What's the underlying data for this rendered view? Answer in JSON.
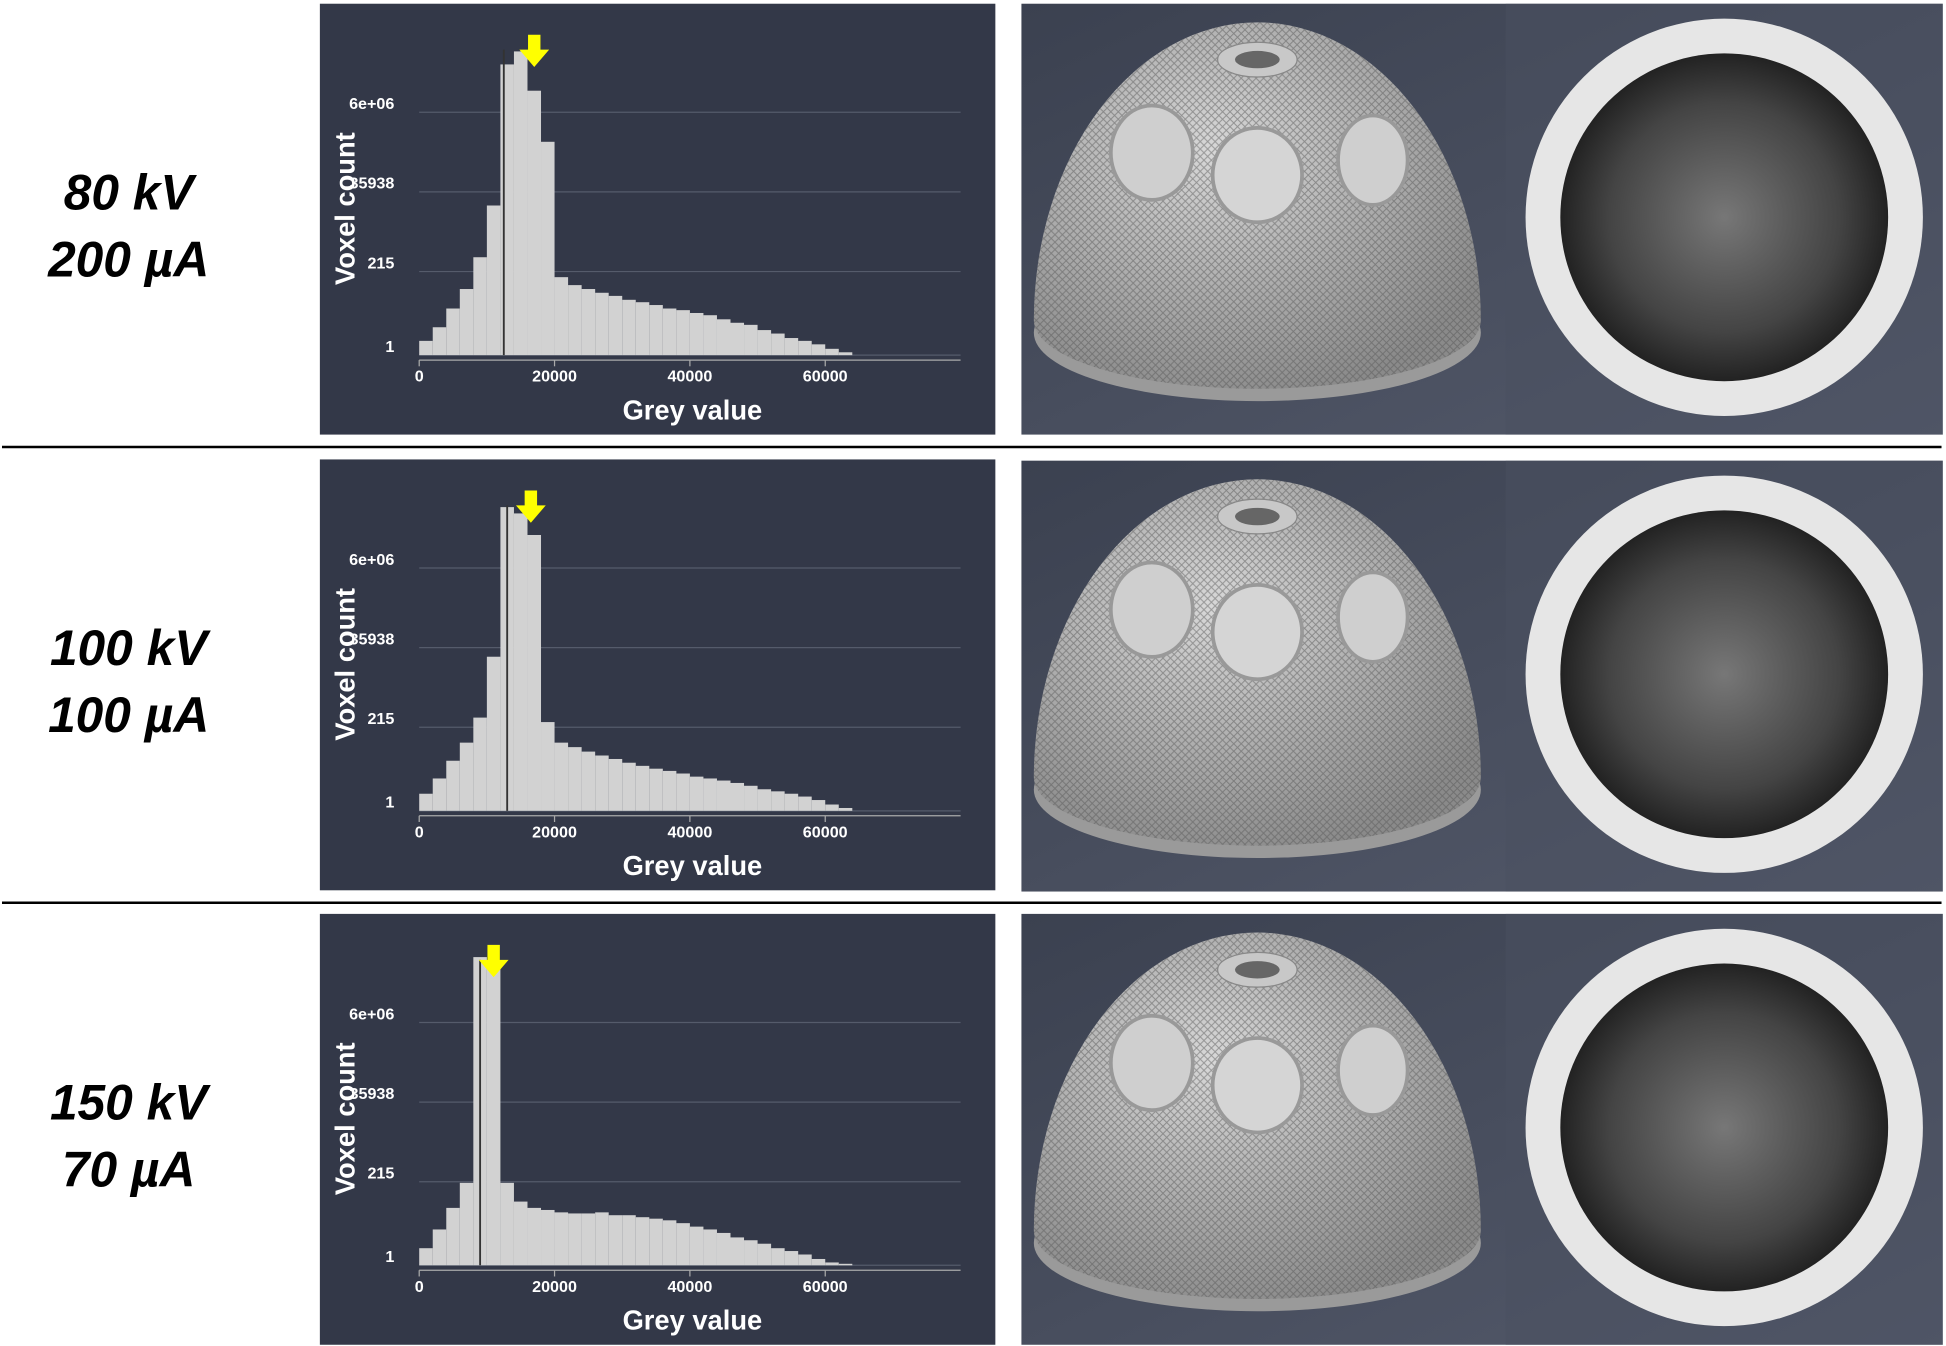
{
  "rows": [
    [
      "80 kV",
      "200 µA"
    ],
    [
      "100 kV",
      "100 µA"
    ],
    [
      "150 kV",
      "70 µA"
    ]
  ],
  "chart_data": [
    {
      "type": "histogram",
      "xlabel": "Grey value",
      "ylabel": "Voxel count",
      "log_y": true,
      "grid": true,
      "color": "#d2d2d2",
      "bins": [
        0,
        2000,
        4000,
        6000,
        8000,
        10000,
        12000,
        14000,
        16000,
        18000,
        20000,
        22000,
        24000,
        26000,
        28000,
        30000,
        32000,
        34000,
        36000,
        38000,
        40000,
        42000,
        44000,
        46000,
        48000,
        50000,
        52000,
        54000,
        56000,
        58000,
        60000,
        62000,
        64000,
        66000
      ],
      "values": [
        2.5,
        6,
        20,
        70,
        540,
        15000,
        130000000,
        300000000,
        24000000,
        900000,
        150,
        90,
        70,
        55,
        45,
        35,
        30,
        25,
        20,
        18,
        15,
        13,
        10,
        8,
        7,
        5,
        4,
        3,
        2.5,
        2,
        1.5,
        1.2,
        1
      ],
      "marker_line": 12500,
      "arrow_x": 17000,
      "xlim": [
        0,
        80000
      ],
      "xticks": [
        0,
        20000,
        40000,
        60000
      ],
      "ylim": [
        1,
        500000000
      ],
      "yticks": [
        1,
        215,
        35938,
        {
          "value": 6000000,
          "label": "6e+06"
        }
      ]
    },
    {
      "type": "histogram",
      "xlabel": "Grey value",
      "ylabel": "Voxel count",
      "log_y": true,
      "grid": true,
      "color": "#d2d2d2",
      "bins": [
        0,
        2000,
        4000,
        6000,
        8000,
        10000,
        12000,
        14000,
        16000,
        18000,
        20000,
        22000,
        24000,
        26000,
        28000,
        30000,
        32000,
        34000,
        36000,
        38000,
        40000,
        42000,
        44000,
        46000,
        48000,
        50000,
        52000,
        54000,
        56000,
        58000,
        60000,
        62000,
        64000,
        66000
      ],
      "values": [
        3,
        8,
        25,
        80,
        400,
        20000,
        300000000,
        200000000,
        50000000,
        300,
        80,
        60,
        45,
        35,
        28,
        22,
        18,
        15,
        13,
        11,
        9,
        8,
        7,
        6,
        5,
        4,
        3.5,
        3,
        2.5,
        2,
        1.5,
        1.2,
        1
      ],
      "marker_line": 13000,
      "arrow_x": 16500,
      "xlim": [
        0,
        80000
      ],
      "xticks": [
        0,
        20000,
        40000,
        60000
      ],
      "ylim": [
        1,
        500000000
      ],
      "yticks": [
        1,
        215,
        35938,
        {
          "value": 6000000,
          "label": "6e+06"
        }
      ]
    },
    {
      "type": "histogram",
      "xlabel": "Grey value",
      "ylabel": "Voxel count",
      "log_y": true,
      "grid": true,
      "color": "#d2d2d2",
      "bins": [
        0,
        2000,
        4000,
        6000,
        8000,
        10000,
        12000,
        14000,
        16000,
        18000,
        20000,
        22000,
        24000,
        26000,
        28000,
        30000,
        32000,
        34000,
        36000,
        38000,
        40000,
        42000,
        44000,
        46000,
        48000,
        50000,
        52000,
        54000,
        56000,
        58000,
        60000,
        62000,
        64000,
        66000
      ],
      "values": [
        3,
        10,
        40,
        200,
        400000000,
        300000000,
        200,
        60,
        40,
        35,
        30,
        28,
        28,
        30,
        25,
        25,
        22,
        20,
        18,
        15,
        12,
        10,
        8,
        6,
        5,
        4,
        3,
        2.5,
        2,
        1.5,
        1.2,
        1.1,
        1
      ],
      "marker_line": 9000,
      "arrow_x": 11000,
      "xlim": [
        0,
        80000
      ],
      "xticks": [
        0,
        20000,
        40000,
        60000
      ],
      "ylim": [
        1,
        500000000
      ],
      "yticks": [
        1,
        215,
        35938,
        {
          "value": 6000000,
          "label": "6e+06"
        }
      ]
    }
  ]
}
